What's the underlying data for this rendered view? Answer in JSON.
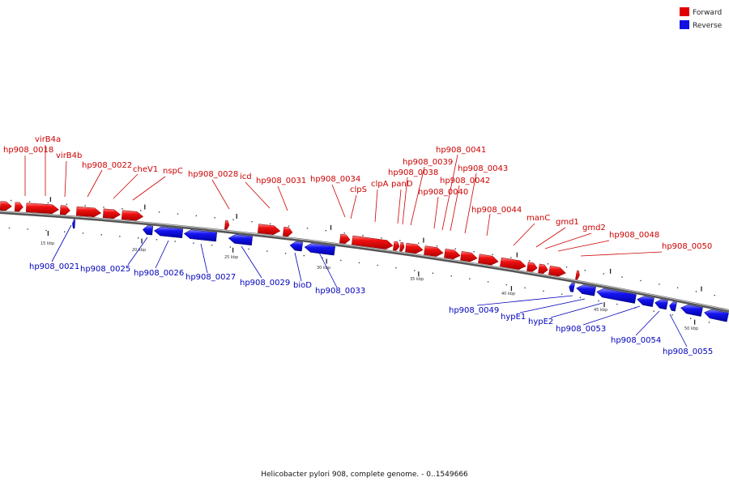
{
  "legend": {
    "forward_label": "Forward",
    "reverse_label": "Reverse",
    "forward_color": "#e00000",
    "reverse_color": "#1010e0"
  },
  "caption": "Helicobacter pylori 908, complete genome. - 0..1549666",
  "scale_labels": [
    "15 kbp",
    "20 kbp",
    "25 kbp",
    "30 kbp",
    "35 kbp",
    "40 kbp",
    "45 kbp",
    "50 kbp"
  ],
  "genes": {
    "forward": [
      "hp908_0018",
      "virB4a",
      "virB4b",
      "hp908_0022",
      "cheV1",
      "nspC",
      "hp908_0028",
      "icd",
      "hp908_0031",
      "hp908_0034",
      "clpS",
      "clpA",
      "panD",
      "hp908_0038",
      "hp908_0039",
      "hp908_0040",
      "hp908_0041",
      "hp908_0042",
      "hp908_0043",
      "hp908_0044",
      "manC",
      "gmd1",
      "gmd2",
      "hp908_0048",
      "hp908_0050"
    ],
    "reverse": [
      "hp908_0021",
      "hp908_0025",
      "hp908_0026",
      "hp908_0027",
      "hp908_0029",
      "bioD",
      "hp908_0033",
      "hp908_0049",
      "hypE1",
      "hypE2",
      "hp908_0053",
      "hp908_0054",
      "hp908_0055"
    ]
  }
}
